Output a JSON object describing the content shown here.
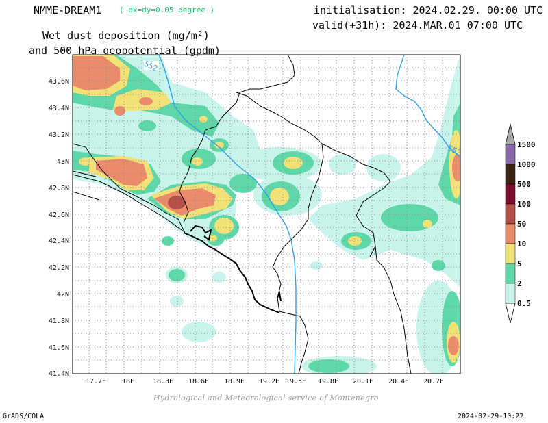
{
  "header": {
    "model_name": "NMME-DREAM1",
    "model_resolution": "( dx=dy=0.05 degree )",
    "initialisation": "initialisation: 2024.02.29. 00:00 UTC",
    "valid": "valid(+31h): 2024.MAR.01 07:00 UTC",
    "title_line1": "Wet dust deposition (mg/m²)",
    "title_line2": "and 500 hPa geopotential (gpdm)"
  },
  "map": {
    "lon_ticks": [
      "17.7E",
      "18E",
      "18.3E",
      "18.6E",
      "18.9E",
      "19.2E",
      "19.5E",
      "19.8E",
      "20.1E",
      "20.4E",
      "20.7E"
    ],
    "lat_ticks": [
      "43.6N",
      "43.4N",
      "43.2N",
      "43N",
      "42.8N",
      "42.6N",
      "42.4N",
      "42.2N",
      "42N",
      "41.8N",
      "41.6N",
      "41.4N"
    ],
    "contour_labels": [
      "552",
      "552"
    ],
    "colors": {
      "c0_5": "#c8f4ec",
      "c2": "#5ed8a8",
      "c5": "#f1e177",
      "c10": "#ea8c6c",
      "c50": "#b45047",
      "c100": "#7e0b2d",
      "c500": "#3b2211",
      "c1000": "#8a6aa6",
      "c1500": "#a8a8a8",
      "contour": "#2f9fe8"
    }
  },
  "legend": {
    "labels": [
      "1500",
      "1000",
      "500",
      "100",
      "50",
      "10",
      "5",
      "2",
      "0.5"
    ]
  },
  "footer": {
    "credit": "Hydrological and Meteorological service of Montenegro",
    "software": "GrADS/COLA",
    "timestamp": "2024-02-29-10:22"
  }
}
